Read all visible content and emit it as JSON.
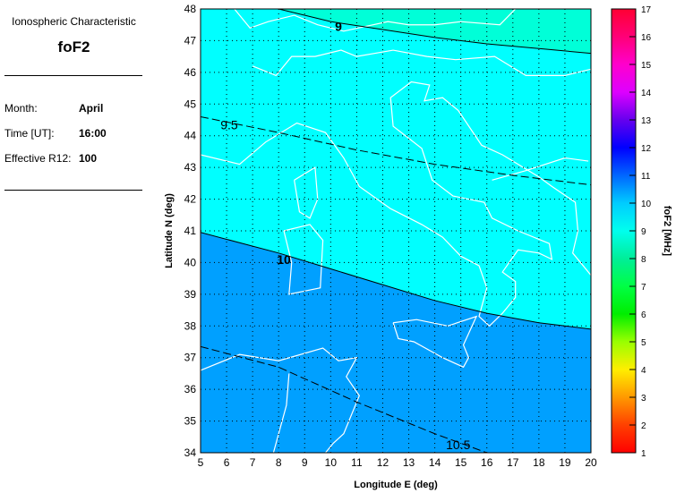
{
  "info": {
    "title": "Ionospheric Characteristic",
    "parameter": "foF2",
    "month_label": "Month:",
    "month": "April",
    "time_label": "Time [UT]:",
    "time": "16:00",
    "r12_label": "Effective R12:",
    "r12": "100"
  },
  "map": {
    "xlabel": "Longitude E (deg)",
    "ylabel": "Latitude N (deg)",
    "xlim": [
      5,
      20
    ],
    "ylim": [
      34,
      48
    ],
    "xticks": [
      5,
      6,
      7,
      8,
      9,
      10,
      11,
      12,
      13,
      14,
      15,
      16,
      17,
      18,
      19,
      20
    ],
    "yticks": [
      34,
      35,
      36,
      37,
      38,
      39,
      40,
      41,
      42,
      43,
      44,
      45,
      46,
      47,
      48
    ],
    "grid": true,
    "region_colors": {
      "below_9": "#00ffd8",
      "9_to_10": "#00ffff",
      "above_10": "#00a0ff"
    },
    "contours": [
      {
        "level": "9",
        "style": "solid",
        "points": [
          [
            8,
            48
          ],
          [
            10,
            47.6
          ],
          [
            12,
            47.35
          ],
          [
            14,
            47.1
          ],
          [
            16,
            46.9
          ],
          [
            18,
            46.75
          ],
          [
            20,
            46.6
          ]
        ],
        "label_at": [
          10.3,
          47.45
        ]
      },
      {
        "level": "9.5",
        "style": "dashed",
        "points": [
          [
            5,
            44.6
          ],
          [
            8,
            44.1
          ],
          [
            11,
            43.55
          ],
          [
            14,
            43.1
          ],
          [
            17,
            42.75
          ],
          [
            20,
            42.45
          ]
        ],
        "label_at": [
          6.1,
          44.35
        ]
      },
      {
        "level": "10",
        "style": "solid",
        "points": [
          [
            5,
            40.95
          ],
          [
            8,
            40.3
          ],
          [
            10,
            39.8
          ],
          [
            12,
            39.3
          ],
          [
            14,
            38.8
          ],
          [
            16,
            38.4
          ],
          [
            18,
            38.1
          ],
          [
            20,
            37.9
          ]
        ],
        "label_at": [
          8.2,
          40.1
        ]
      },
      {
        "level": "10.5",
        "style": "dashed",
        "points": [
          [
            5,
            37.35
          ],
          [
            8,
            36.7
          ],
          [
            11,
            35.6
          ],
          [
            14,
            34.6
          ],
          [
            16,
            34
          ]
        ],
        "label_at": [
          14.9,
          34.25
        ]
      }
    ]
  },
  "colorbar": {
    "label": "foF2 [MHz]",
    "range": [
      1,
      17
    ],
    "ticks": [
      "1",
      "2",
      "3",
      "4",
      "5",
      "6",
      "7",
      "8",
      "9",
      "10",
      "11",
      "12",
      "13",
      "14",
      "15",
      "16",
      "17"
    ],
    "colors": [
      "#ff0000",
      "#ff4000",
      "#ff9900",
      "#ffee00",
      "#99ff00",
      "#00ee00",
      "#00ff44",
      "#00ee99",
      "#00ffee",
      "#00ccff",
      "#0066ff",
      "#0000ff",
      "#6600ee",
      "#dd00ff",
      "#ff00cc",
      "#ff0077",
      "#ff0033"
    ]
  }
}
